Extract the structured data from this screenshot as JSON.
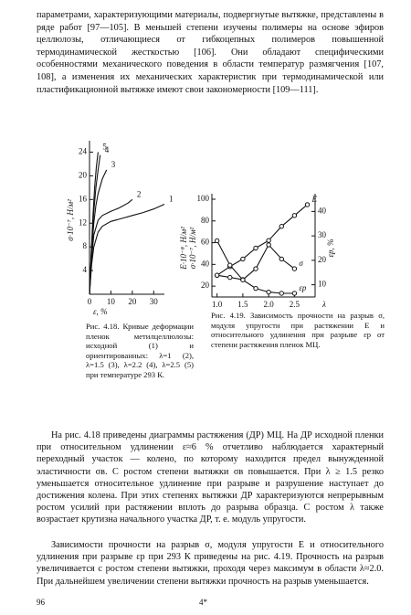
{
  "intro": "параметрами, характеризующими материалы, подвергнутые вытяжке, представлены в ряде работ [97—105]. В меньшей степени изучены полимеры на основе эфиров целлюлозы, отличающиеся от гибкоцепных полимеров повышенной термодинамической жесткостью [106]. Они обладают специфическими особенностями механического поведения в области температур размягчения [107, 108], а изменения их механических характеристик при термодинамической или пластификационной вытяжке имеют свои закономерности [109—111].",
  "figures": [
    {
      "caption": "Рис. 4.18. Кривые деформации пленок метилцеллюлозы: исходной (1) и ориентированных: λ=1 (2), λ=1.5 (3), λ=2.2 (4), λ=2.5 (5) при температуре 293 К.",
      "ylabel": "σ·10⁻⁷, Н/м²",
      "xlabel": "ε, %",
      "xlim": [
        0,
        35
      ],
      "ylim": [
        0,
        25
      ],
      "xticks": [
        0,
        10,
        20,
        30
      ],
      "yticks": [
        4,
        8,
        12,
        16,
        20,
        24
      ],
      "curves": [
        {
          "label": "1",
          "x": [
            0,
            1,
            2,
            4,
            6,
            10,
            15,
            20,
            25,
            30,
            35
          ],
          "y": [
            0,
            5,
            8,
            10.5,
            11.5,
            12.3,
            12.8,
            13.3,
            13.8,
            14.4,
            15.2
          ]
        },
        {
          "label": "2",
          "x": [
            0,
            1,
            2,
            4,
            6,
            10,
            14,
            18,
            20
          ],
          "y": [
            0,
            6,
            10,
            12.5,
            13.3,
            14,
            14.6,
            15.4,
            16
          ]
        },
        {
          "label": "3",
          "x": [
            0,
            1,
            2,
            3,
            4,
            6,
            8
          ],
          "y": [
            0,
            7,
            12,
            15,
            17,
            19.5,
            21
          ]
        },
        {
          "label": "4",
          "x": [
            0,
            1,
            2,
            3,
            4,
            5
          ],
          "y": [
            0,
            8,
            14,
            18,
            21,
            23.5
          ]
        },
        {
          "label": "5",
          "x": [
            0,
            0.8,
            1.6,
            2.4,
            3.2,
            4
          ],
          "y": [
            0,
            7,
            13,
            18,
            21.5,
            24
          ]
        }
      ]
    },
    {
      "caption": "Рис. 4.19. Зависимость прочности на разрыв σ, модуля упругости при растяжении E и относительного удлинения при разрыве εр от степени растяжения пленок МЦ.",
      "ylabel": "σ·10⁻⁷, Н/м²",
      "ylabel2": "E·10⁻⁸, Н/м²",
      "y2label": "εр, %",
      "xlabel": "λ",
      "xlim": [
        0.9,
        2.9
      ],
      "ylim": [
        10,
        100
      ],
      "y2lim": [
        5,
        45
      ],
      "xticks": [
        {
          "value": 1,
          "label": "1.0"
        },
        1.5,
        {
          "value": 2,
          "label": "2.0"
        },
        2.5
      ],
      "yticks": [
        20,
        40,
        60,
        80,
        100
      ],
      "y2ticks": [
        10,
        20,
        30,
        40
      ],
      "curves": [
        {
          "label": "E",
          "x": [
            1.0,
            1.25,
            1.5,
            1.75,
            2.0,
            2.25,
            2.5,
            2.75
          ],
          "y": [
            30,
            38,
            45,
            55,
            62,
            75,
            85,
            95
          ]
        },
        {
          "label": "σ",
          "x": [
            1.0,
            1.25,
            1.5,
            1.75,
            2.0,
            2.25,
            2.5
          ],
          "y": [
            30,
            28,
            26,
            36,
            58,
            45,
            36
          ]
        },
        {
          "label": "εр",
          "axis": "y2",
          "x": [
            1.0,
            1.25,
            1.5,
            1.75,
            2.0,
            2.25,
            2.5
          ],
          "y": [
            28,
            18,
            12,
            8.5,
            7,
            6.5,
            6.5
          ]
        }
      ]
    }
  ],
  "body": [
    "На рис. 4.18 приведены диаграммы растяжения (ДР) МЦ. На ДР исходной пленки при относительном удлинении ε≈6 % отчетливо наблюдается характерный переходный участок — колено, по которому находится предел вынужденной эластичности σв. С ростом степени вытяжки σв повышается. При λ ≥ 1.5 резко уменьшается относительное удлинение при разрыве и разрушение наступает до достижения колена. При этих степенях вытяжки ДР характеризуются непрерывным ростом усилий при растяжении вплоть до разрыва образца. С ростом λ также возрастает крутизна начального участка ДР, т. е. модуль упругости.",
    "Зависимости прочности на разрыв σ, модуля упругости E и относительного удлинения при разрыве εр при 293 К приведены на рис. 4.19. Прочность на разрыв увеличивается с ростом степени вытяжки, проходя через максимум в области λ≈2.0. При дальнейшем увеличении степени вытяжки прочность на разрыв уменьшается."
  ],
  "footer": {
    "page": "96",
    "signature": "4*"
  }
}
